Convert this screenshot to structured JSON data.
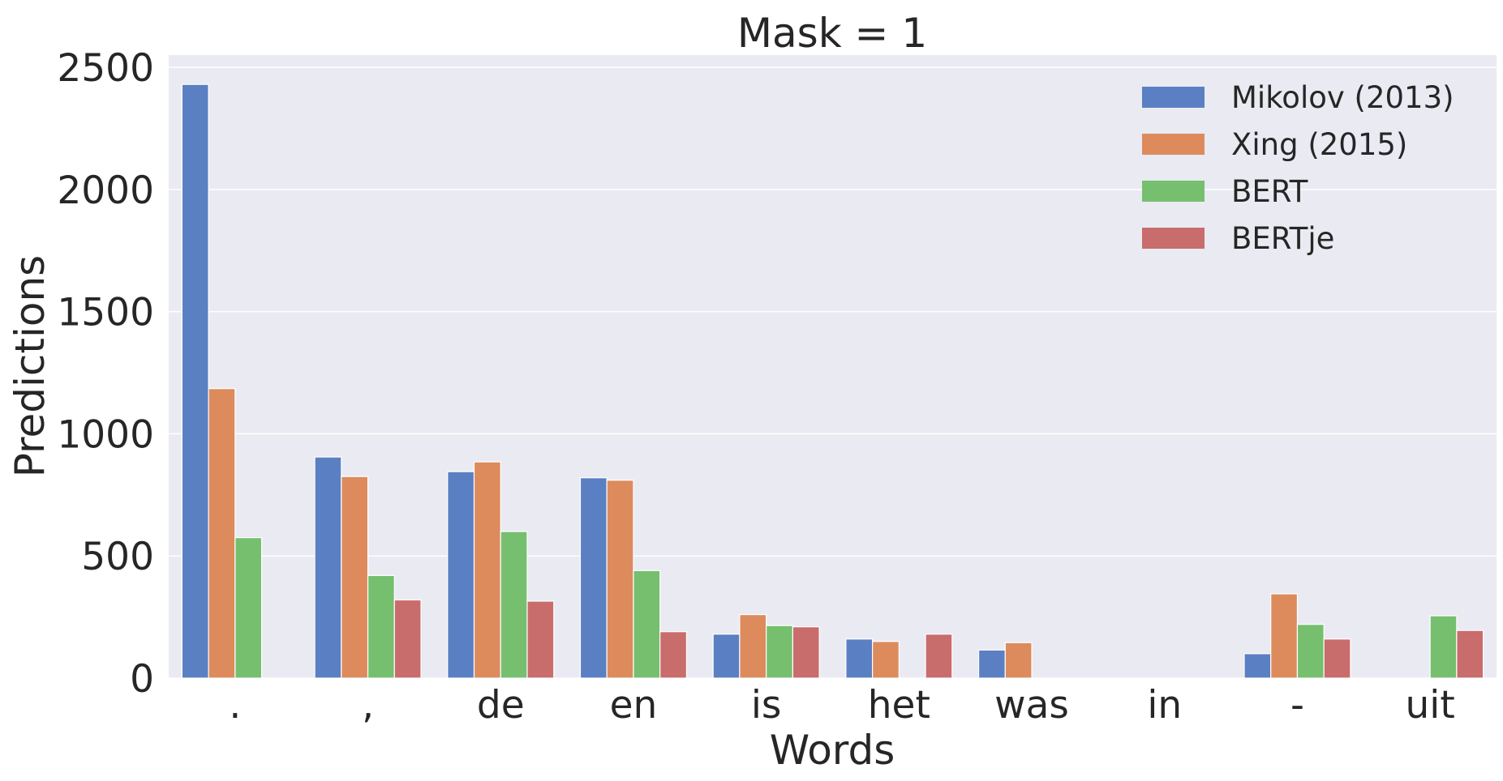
{
  "chart_data": {
    "type": "bar",
    "title": "Mask = 1",
    "xlabel": "Words",
    "ylabel": "Predictions",
    "categories": [
      ".",
      ",",
      "de",
      "en",
      "is",
      "het",
      "was",
      "in",
      "-",
      "uit"
    ],
    "ylim": [
      0,
      2550
    ],
    "yticks": [
      0,
      500,
      1000,
      1500,
      2000,
      2500
    ],
    "grid": true,
    "legend_position": "top-right",
    "series": [
      {
        "name": "Mikolov (2013)",
        "color": "#5b7fc3",
        "values": [
          2430,
          905,
          845,
          820,
          180,
          160,
          115,
          null,
          100,
          null
        ]
      },
      {
        "name": "Xing (2015)",
        "color": "#dd8b5c",
        "values": [
          1185,
          825,
          885,
          810,
          260,
          150,
          145,
          null,
          345,
          null
        ]
      },
      {
        "name": "BERT",
        "color": "#75bf6f",
        "values": [
          575,
          420,
          600,
          440,
          215,
          null,
          null,
          null,
          220,
          255
        ]
      },
      {
        "name": "BERTje",
        "color": "#c96c6c",
        "values": [
          null,
          320,
          315,
          190,
          210,
          180,
          null,
          null,
          160,
          195
        ]
      }
    ]
  }
}
